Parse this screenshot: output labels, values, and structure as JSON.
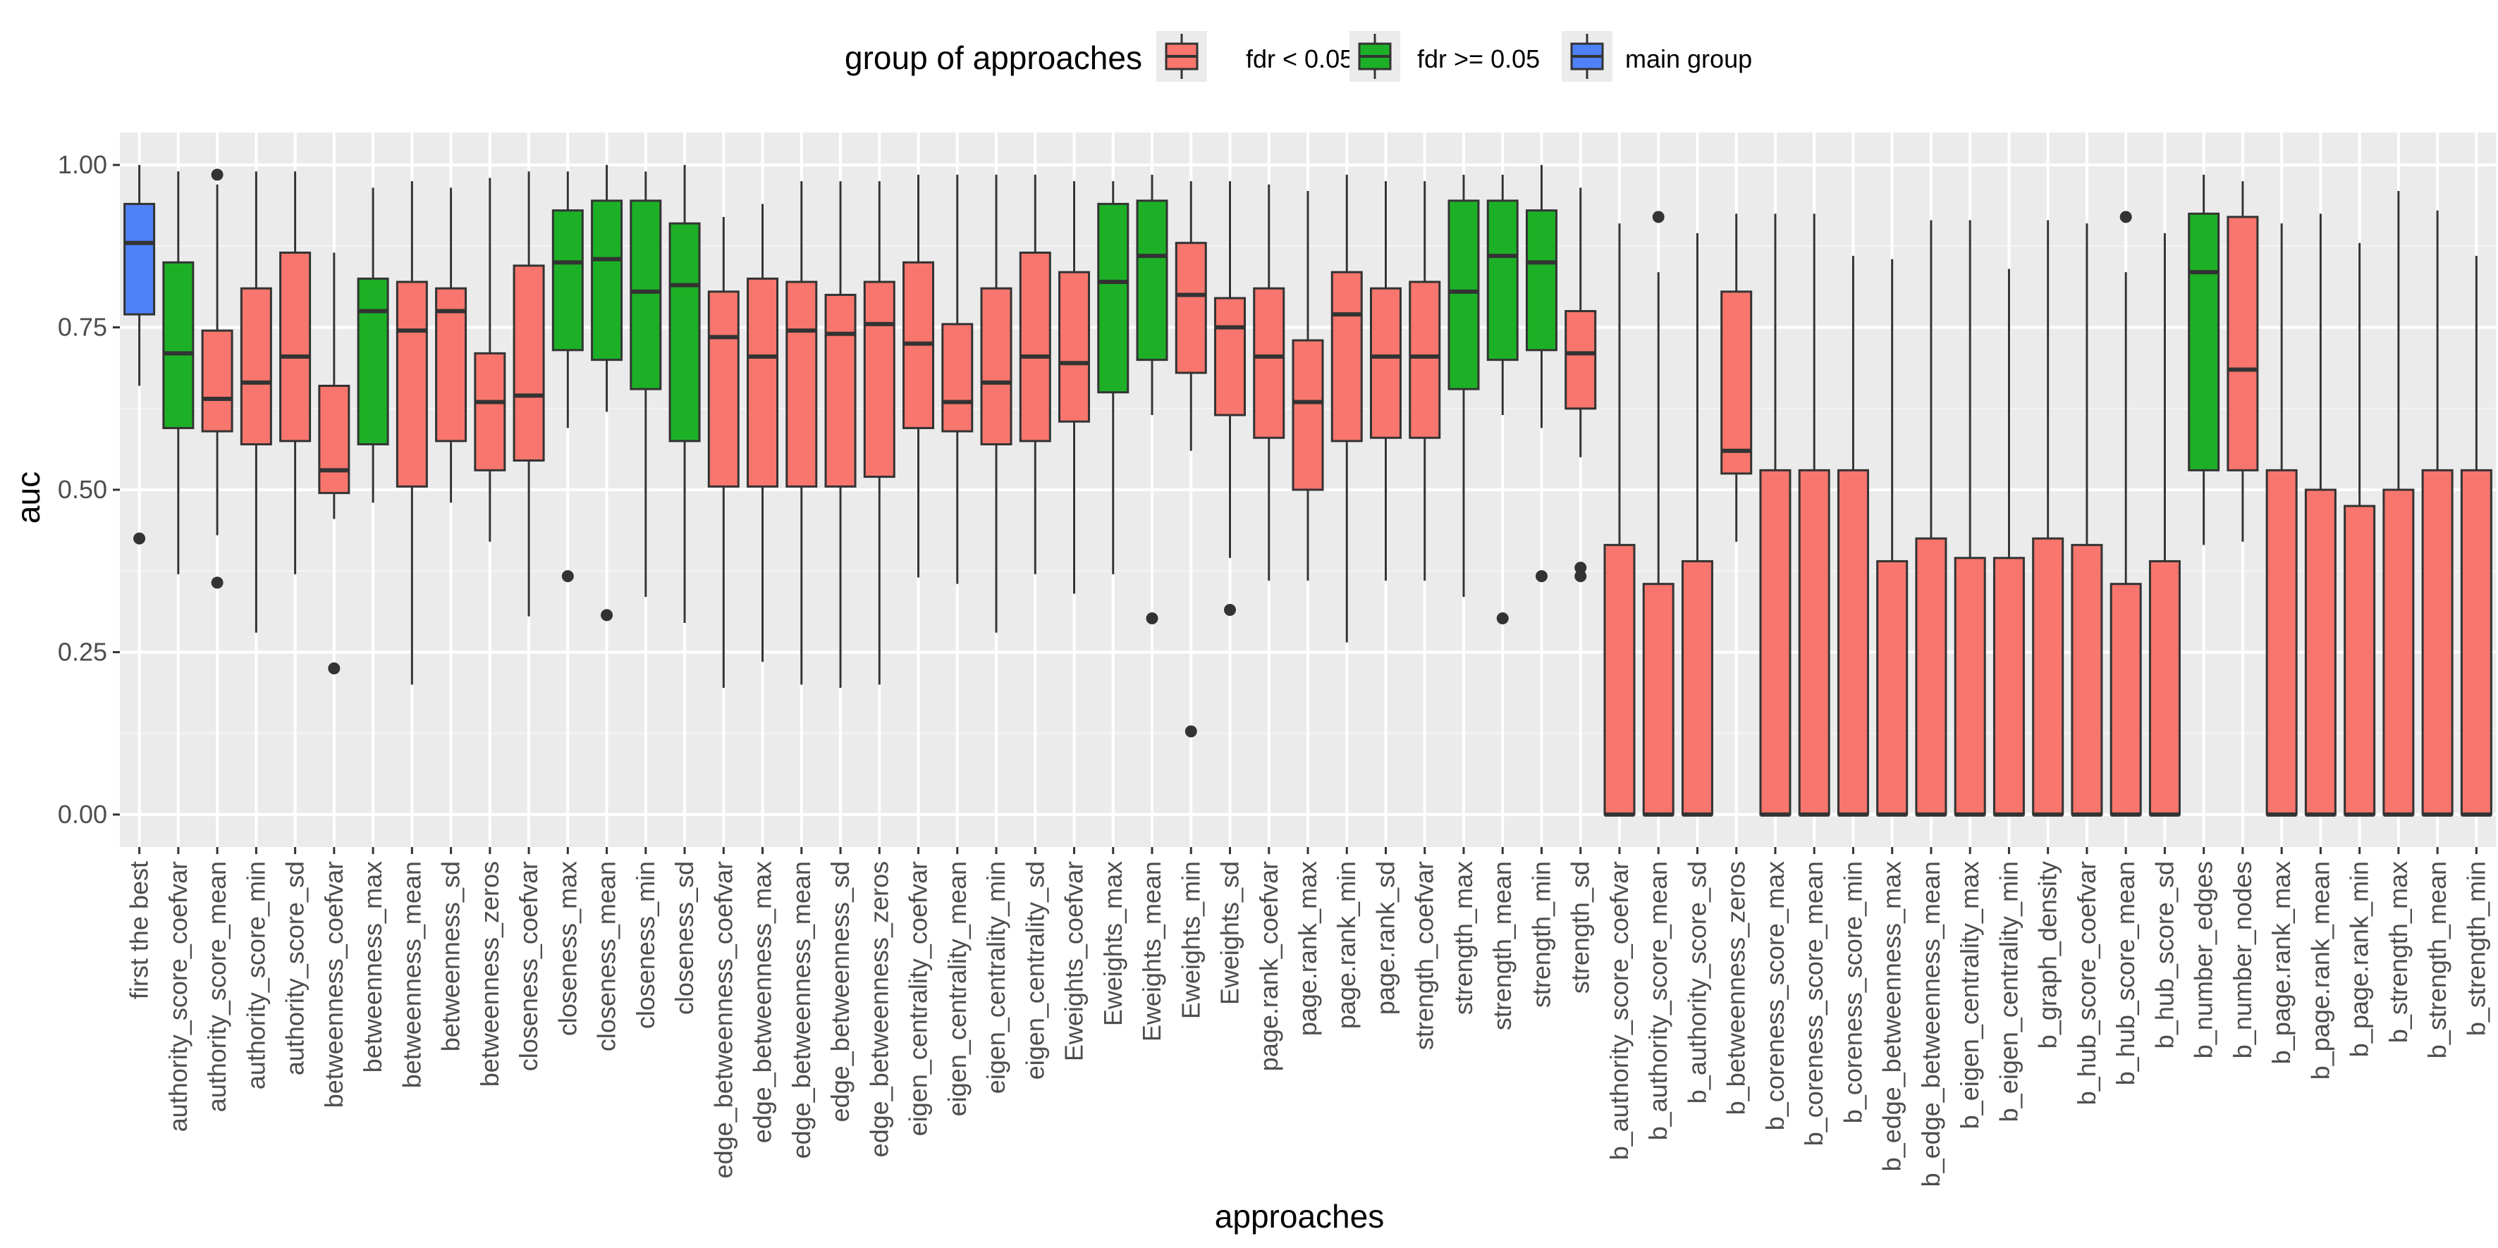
{
  "chart_data": {
    "type": "boxplot",
    "title": "",
    "xlabel": "approaches",
    "ylabel": "auc",
    "ylim": [
      -0.05,
      1.05
    ],
    "yticks": [
      0.0,
      0.25,
      0.5,
      0.75,
      1.0
    ],
    "ytick_labels": [
      "0.00",
      "0.25",
      "0.50",
      "0.75",
      "1.00"
    ],
    "grid": true,
    "legend": {
      "title": "group of approaches",
      "position": "top",
      "entries": [
        {
          "label": "fdr < 0.05",
          "color": "#F8766D"
        },
        {
          "label": "fdr >= 0.05",
          "color": "#1DB027"
        },
        {
          "label": "main group",
          "color": "#4F82F7"
        }
      ]
    },
    "group_colors": {
      "fdr<": "#F8766D",
      "fdr>=": "#1DB027",
      "main": "#4F82F7"
    },
    "boxes": [
      {
        "category": "first the best",
        "group": "main",
        "whisker_low": 0.66,
        "q1": 0.77,
        "median": 0.88,
        "q3": 0.94,
        "whisker_high": 1.0,
        "outliers": [
          0.425
        ]
      },
      {
        "category": "authority_score_coefvar",
        "group": "fdr>=",
        "whisker_low": 0.37,
        "q1": 0.595,
        "median": 0.71,
        "q3": 0.85,
        "whisker_high": 0.99,
        "outliers": []
      },
      {
        "category": "authority_score_mean",
        "group": "fdr<",
        "whisker_low": 0.43,
        "q1": 0.59,
        "median": 0.64,
        "q3": 0.745,
        "whisker_high": 0.97,
        "outliers": [
          0.985,
          0.357
        ]
      },
      {
        "category": "authority_score_min",
        "group": "fdr<",
        "whisker_low": 0.28,
        "q1": 0.57,
        "median": 0.665,
        "q3": 0.81,
        "whisker_high": 0.99,
        "outliers": []
      },
      {
        "category": "authority_score_sd",
        "group": "fdr<",
        "whisker_low": 0.37,
        "q1": 0.575,
        "median": 0.705,
        "q3": 0.865,
        "whisker_high": 0.99,
        "outliers": []
      },
      {
        "category": "betweenness_coefvar",
        "group": "fdr<",
        "whisker_low": 0.455,
        "q1": 0.495,
        "median": 0.53,
        "q3": 0.66,
        "whisker_high": 0.865,
        "outliers": [
          0.225
        ]
      },
      {
        "category": "betweenness_max",
        "group": "fdr>=",
        "whisker_low": 0.48,
        "q1": 0.57,
        "median": 0.775,
        "q3": 0.825,
        "whisker_high": 0.965,
        "outliers": []
      },
      {
        "category": "betweenness_mean",
        "group": "fdr<",
        "whisker_low": 0.2,
        "q1": 0.505,
        "median": 0.745,
        "q3": 0.82,
        "whisker_high": 0.975,
        "outliers": []
      },
      {
        "category": "betweenness_sd",
        "group": "fdr<",
        "whisker_low": 0.48,
        "q1": 0.575,
        "median": 0.775,
        "q3": 0.81,
        "whisker_high": 0.965,
        "outliers": []
      },
      {
        "category": "betweenness_zeros",
        "group": "fdr<",
        "whisker_low": 0.42,
        "q1": 0.53,
        "median": 0.635,
        "q3": 0.71,
        "whisker_high": 0.98,
        "outliers": []
      },
      {
        "category": "closeness_coefvar",
        "group": "fdr<",
        "whisker_low": 0.305,
        "q1": 0.545,
        "median": 0.645,
        "q3": 0.845,
        "whisker_high": 0.99,
        "outliers": []
      },
      {
        "category": "closeness_max",
        "group": "fdr>=",
        "whisker_low": 0.595,
        "q1": 0.715,
        "median": 0.85,
        "q3": 0.93,
        "whisker_high": 0.99,
        "outliers": [
          0.367
        ]
      },
      {
        "category": "closeness_mean",
        "group": "fdr>=",
        "whisker_low": 0.62,
        "q1": 0.7,
        "median": 0.855,
        "q3": 0.945,
        "whisker_high": 1.0,
        "outliers": [
          0.307
        ]
      },
      {
        "category": "closeness_min",
        "group": "fdr>=",
        "whisker_low": 0.335,
        "q1": 0.655,
        "median": 0.805,
        "q3": 0.945,
        "whisker_high": 0.99,
        "outliers": []
      },
      {
        "category": "closeness_sd",
        "group": "fdr>=",
        "whisker_low": 0.295,
        "q1": 0.575,
        "median": 0.815,
        "q3": 0.91,
        "whisker_high": 1.0,
        "outliers": []
      },
      {
        "category": "edge_betweenness_coefvar",
        "group": "fdr<",
        "whisker_low": 0.195,
        "q1": 0.505,
        "median": 0.735,
        "q3": 0.805,
        "whisker_high": 0.92,
        "outliers": []
      },
      {
        "category": "edge_betweenness_max",
        "group": "fdr<",
        "whisker_low": 0.235,
        "q1": 0.505,
        "median": 0.705,
        "q3": 0.825,
        "whisker_high": 0.94,
        "outliers": []
      },
      {
        "category": "edge_betweenness_mean",
        "group": "fdr<",
        "whisker_low": 0.2,
        "q1": 0.505,
        "median": 0.745,
        "q3": 0.82,
        "whisker_high": 0.975,
        "outliers": []
      },
      {
        "category": "edge_betweenness_sd",
        "group": "fdr<",
        "whisker_low": 0.195,
        "q1": 0.505,
        "median": 0.74,
        "q3": 0.8,
        "whisker_high": 0.975,
        "outliers": []
      },
      {
        "category": "edge_betweenness_zeros",
        "group": "fdr<",
        "whisker_low": 0.2,
        "q1": 0.52,
        "median": 0.755,
        "q3": 0.82,
        "whisker_high": 0.975,
        "outliers": []
      },
      {
        "category": "eigen_centrality_coefvar",
        "group": "fdr<",
        "whisker_low": 0.365,
        "q1": 0.595,
        "median": 0.725,
        "q3": 0.85,
        "whisker_high": 0.985,
        "outliers": []
      },
      {
        "category": "eigen_centrality_mean",
        "group": "fdr<",
        "whisker_low": 0.355,
        "q1": 0.59,
        "median": 0.635,
        "q3": 0.755,
        "whisker_high": 0.985,
        "outliers": []
      },
      {
        "category": "eigen_centrality_min",
        "group": "fdr<",
        "whisker_low": 0.28,
        "q1": 0.57,
        "median": 0.665,
        "q3": 0.81,
        "whisker_high": 0.985,
        "outliers": []
      },
      {
        "category": "eigen_centrality_sd",
        "group": "fdr<",
        "whisker_low": 0.37,
        "q1": 0.575,
        "median": 0.705,
        "q3": 0.865,
        "whisker_high": 0.985,
        "outliers": []
      },
      {
        "category": "Eweights_coefvar",
        "group": "fdr<",
        "whisker_low": 0.34,
        "q1": 0.605,
        "median": 0.695,
        "q3": 0.835,
        "whisker_high": 0.975,
        "outliers": []
      },
      {
        "category": "Eweights_max",
        "group": "fdr>=",
        "whisker_low": 0.37,
        "q1": 0.65,
        "median": 0.82,
        "q3": 0.94,
        "whisker_high": 0.975,
        "outliers": []
      },
      {
        "category": "Eweights_mean",
        "group": "fdr>=",
        "whisker_low": 0.615,
        "q1": 0.7,
        "median": 0.86,
        "q3": 0.945,
        "whisker_high": 0.985,
        "outliers": [
          0.302
        ]
      },
      {
        "category": "Eweights_min",
        "group": "fdr<",
        "whisker_low": 0.56,
        "q1": 0.68,
        "median": 0.8,
        "q3": 0.88,
        "whisker_high": 0.975,
        "outliers": [
          0.128
        ]
      },
      {
        "category": "Eweights_sd",
        "group": "fdr<",
        "whisker_low": 0.395,
        "q1": 0.615,
        "median": 0.75,
        "q3": 0.795,
        "whisker_high": 0.975,
        "outliers": [
          0.315
        ]
      },
      {
        "category": "page.rank_coefvar",
        "group": "fdr<",
        "whisker_low": 0.36,
        "q1": 0.58,
        "median": 0.705,
        "q3": 0.81,
        "whisker_high": 0.97,
        "outliers": []
      },
      {
        "category": "page.rank_max",
        "group": "fdr<",
        "whisker_low": 0.36,
        "q1": 0.5,
        "median": 0.635,
        "q3": 0.73,
        "whisker_high": 0.96,
        "outliers": []
      },
      {
        "category": "page.rank_min",
        "group": "fdr<",
        "whisker_low": 0.265,
        "q1": 0.575,
        "median": 0.77,
        "q3": 0.835,
        "whisker_high": 0.985,
        "outliers": []
      },
      {
        "category": "page.rank_sd",
        "group": "fdr<",
        "whisker_low": 0.36,
        "q1": 0.58,
        "median": 0.705,
        "q3": 0.81,
        "whisker_high": 0.975,
        "outliers": []
      },
      {
        "category": "strength_coefvar",
        "group": "fdr<",
        "whisker_low": 0.36,
        "q1": 0.58,
        "median": 0.705,
        "q3": 0.82,
        "whisker_high": 0.975,
        "outliers": []
      },
      {
        "category": "strength_max",
        "group": "fdr>=",
        "whisker_low": 0.335,
        "q1": 0.655,
        "median": 0.805,
        "q3": 0.945,
        "whisker_high": 0.985,
        "outliers": []
      },
      {
        "category": "strength_mean",
        "group": "fdr>=",
        "whisker_low": 0.615,
        "q1": 0.7,
        "median": 0.86,
        "q3": 0.945,
        "whisker_high": 0.985,
        "outliers": [
          0.302
        ]
      },
      {
        "category": "strength_min",
        "group": "fdr>=",
        "whisker_low": 0.595,
        "q1": 0.715,
        "median": 0.85,
        "q3": 0.93,
        "whisker_high": 1.0,
        "outliers": [
          0.367
        ]
      },
      {
        "category": "strength_sd",
        "group": "fdr<",
        "whisker_low": 0.55,
        "q1": 0.625,
        "median": 0.71,
        "q3": 0.775,
        "whisker_high": 0.965,
        "outliers": [
          0.38,
          0.367
        ]
      },
      {
        "category": "b_authority_score_coefvar",
        "group": "fdr<",
        "whisker_low": 0.0,
        "q1": 0.0,
        "median": 0.0,
        "q3": 0.415,
        "whisker_high": 0.91,
        "outliers": []
      },
      {
        "category": "b_authority_score_mean",
        "group": "fdr<",
        "whisker_low": 0.0,
        "q1": 0.0,
        "median": 0.0,
        "q3": 0.355,
        "whisker_high": 0.835,
        "outliers": [
          0.92
        ]
      },
      {
        "category": "b_authority_score_sd",
        "group": "fdr<",
        "whisker_low": 0.0,
        "q1": 0.0,
        "median": 0.0,
        "q3": 0.39,
        "whisker_high": 0.895,
        "outliers": []
      },
      {
        "category": "b_betweenness_zeros",
        "group": "fdr<",
        "whisker_low": 0.42,
        "q1": 0.525,
        "median": 0.56,
        "q3": 0.805,
        "whisker_high": 0.925,
        "outliers": []
      },
      {
        "category": "b_coreness_score_max",
        "group": "fdr<",
        "whisker_low": 0.0,
        "q1": 0.0,
        "median": 0.0,
        "q3": 0.53,
        "whisker_high": 0.925,
        "outliers": []
      },
      {
        "category": "b_coreness_score_mean",
        "group": "fdr<",
        "whisker_low": 0.0,
        "q1": 0.0,
        "median": 0.0,
        "q3": 0.53,
        "whisker_high": 0.925,
        "outliers": []
      },
      {
        "category": "b_coreness_score_min",
        "group": "fdr<",
        "whisker_low": 0.0,
        "q1": 0.0,
        "median": 0.0,
        "q3": 0.53,
        "whisker_high": 0.86,
        "outliers": []
      },
      {
        "category": "b_edge_betweenness_max",
        "group": "fdr<",
        "whisker_low": 0.0,
        "q1": 0.0,
        "median": 0.0,
        "q3": 0.39,
        "whisker_high": 0.855,
        "outliers": []
      },
      {
        "category": "b_edge_betweenness_mean",
        "group": "fdr<",
        "whisker_low": 0.0,
        "q1": 0.0,
        "median": 0.0,
        "q3": 0.425,
        "whisker_high": 0.915,
        "outliers": []
      },
      {
        "category": "b_eigen_centrality_max",
        "group": "fdr<",
        "whisker_low": 0.0,
        "q1": 0.0,
        "median": 0.0,
        "q3": 0.395,
        "whisker_high": 0.915,
        "outliers": []
      },
      {
        "category": "b_eigen_centrality_min",
        "group": "fdr<",
        "whisker_low": 0.0,
        "q1": 0.0,
        "median": 0.0,
        "q3": 0.395,
        "whisker_high": 0.84,
        "outliers": []
      },
      {
        "category": "b_graph_density",
        "group": "fdr<",
        "whisker_low": 0.0,
        "q1": 0.0,
        "median": 0.0,
        "q3": 0.425,
        "whisker_high": 0.915,
        "outliers": []
      },
      {
        "category": "b_hub_score_coefvar",
        "group": "fdr<",
        "whisker_low": 0.0,
        "q1": 0.0,
        "median": 0.0,
        "q3": 0.415,
        "whisker_high": 0.91,
        "outliers": []
      },
      {
        "category": "b_hub_score_mean",
        "group": "fdr<",
        "whisker_low": 0.0,
        "q1": 0.0,
        "median": 0.0,
        "q3": 0.355,
        "whisker_high": 0.835,
        "outliers": [
          0.92
        ]
      },
      {
        "category": "b_hub_score_sd",
        "group": "fdr<",
        "whisker_low": 0.0,
        "q1": 0.0,
        "median": 0.0,
        "q3": 0.39,
        "whisker_high": 0.895,
        "outliers": []
      },
      {
        "category": "b_number_edges",
        "group": "fdr>=",
        "whisker_low": 0.415,
        "q1": 0.53,
        "median": 0.835,
        "q3": 0.925,
        "whisker_high": 0.985,
        "outliers": []
      },
      {
        "category": "b_number_nodes",
        "group": "fdr<",
        "whisker_low": 0.42,
        "q1": 0.53,
        "median": 0.685,
        "q3": 0.92,
        "whisker_high": 0.975,
        "outliers": []
      },
      {
        "category": "b_page.rank_max",
        "group": "fdr<",
        "whisker_low": 0.0,
        "q1": 0.0,
        "median": 0.0,
        "q3": 0.53,
        "whisker_high": 0.91,
        "outliers": []
      },
      {
        "category": "b_page.rank_mean",
        "group": "fdr<",
        "whisker_low": 0.0,
        "q1": 0.0,
        "median": 0.0,
        "q3": 0.5,
        "whisker_high": 0.925,
        "outliers": []
      },
      {
        "category": "b_page.rank_min",
        "group": "fdr<",
        "whisker_low": 0.0,
        "q1": 0.0,
        "median": 0.0,
        "q3": 0.475,
        "whisker_high": 0.88,
        "outliers": []
      },
      {
        "category": "b_strength_max",
        "group": "fdr<",
        "whisker_low": 0.0,
        "q1": 0.0,
        "median": 0.0,
        "q3": 0.5,
        "whisker_high": 0.96,
        "outliers": []
      },
      {
        "category": "b_strength_mean",
        "group": "fdr<",
        "whisker_low": 0.0,
        "q1": 0.0,
        "median": 0.0,
        "q3": 0.53,
        "whisker_high": 0.93,
        "outliers": []
      },
      {
        "category": "b_strength_min",
        "group": "fdr<",
        "whisker_low": 0.0,
        "q1": 0.0,
        "median": 0.0,
        "q3": 0.53,
        "whisker_high": 0.86,
        "outliers": []
      }
    ]
  }
}
